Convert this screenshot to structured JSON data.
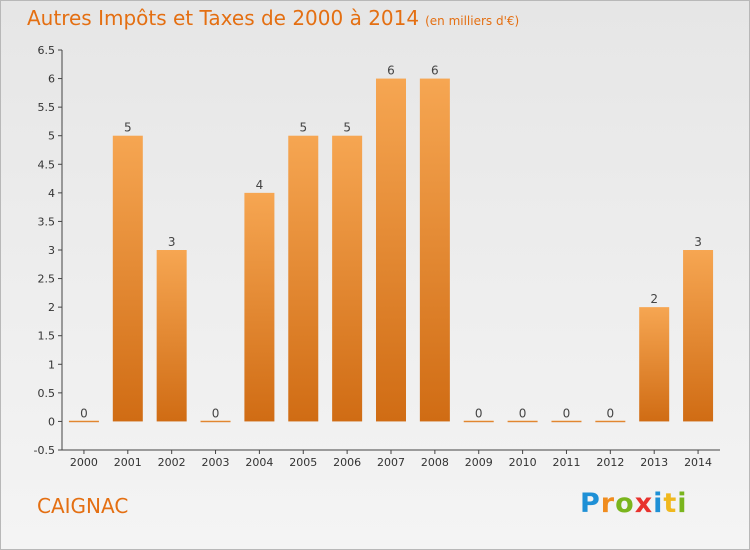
{
  "chart_data": {
    "type": "bar",
    "title": "Autres Impôts et Taxes de 2000 à 2014",
    "subtitle": "(en milliers d'€)",
    "categories": [
      "2000",
      "2001",
      "2002",
      "2003",
      "2004",
      "2005",
      "2006",
      "2007",
      "2008",
      "2009",
      "2010",
      "2011",
      "2012",
      "2013",
      "2014"
    ],
    "values": [
      0,
      5,
      3,
      0,
      4,
      5,
      5,
      6,
      6,
      0,
      0,
      0,
      0,
      2,
      3
    ],
    "data_labels": [
      "0",
      "5",
      "3",
      "0",
      "4",
      "5",
      "5",
      "6",
      "6",
      "0",
      "0",
      "0",
      "0",
      "2",
      "3"
    ],
    "y_ticks": [
      "-0.5",
      "0",
      "0.5",
      "1",
      "1.5",
      "2",
      "2.5",
      "3",
      "3.5",
      "4",
      "4.5",
      "5",
      "5.5",
      "6",
      "6.5"
    ],
    "ylim": [
      -0.5,
      6.5
    ],
    "grid": false,
    "colors": {
      "bar_top": "#f6a652",
      "bar_bottom": "#d06c14",
      "accent": "#e46f12"
    }
  },
  "footer": {
    "commune": "CAIGNAC",
    "logo_letters": [
      {
        "ch": "P",
        "color": "#1e90d6"
      },
      {
        "ch": "r",
        "color": "#f08c1e"
      },
      {
        "ch": "o",
        "color": "#7ab51d"
      },
      {
        "ch": "x",
        "color": "#e8322d"
      },
      {
        "ch": "i",
        "color": "#1e90d6"
      },
      {
        "ch": "t",
        "color": "#f0b81e"
      },
      {
        "ch": "i",
        "color": "#7ab51d"
      }
    ]
  }
}
